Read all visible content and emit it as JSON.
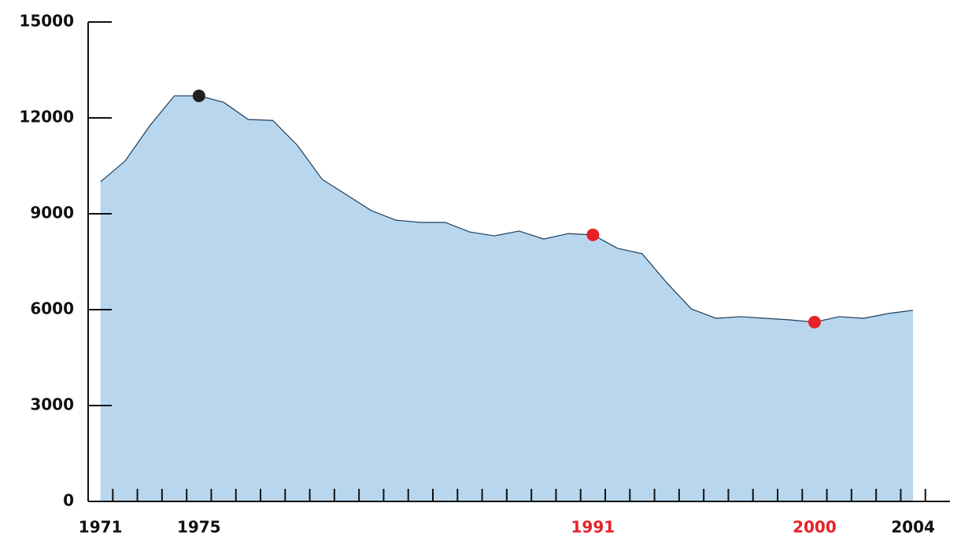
{
  "chart_data": {
    "type": "area",
    "x": [
      1971,
      1972,
      1973,
      1974,
      1975,
      1976,
      1977,
      1978,
      1979,
      1980,
      1981,
      1982,
      1983,
      1984,
      1985,
      1986,
      1987,
      1988,
      1989,
      1990,
      1991,
      1992,
      1993,
      1994,
      1995,
      1996,
      1997,
      1998,
      1999,
      2000,
      2001,
      2002,
      2003,
      2004
    ],
    "values": [
      10000,
      10650,
      11750,
      12690,
      12690,
      12490,
      11950,
      11920,
      11140,
      10080,
      9590,
      9100,
      8800,
      8730,
      8730,
      8430,
      8310,
      8460,
      8210,
      8380,
      8340,
      7920,
      7750,
      6840,
      6020,
      5730,
      5780,
      5730,
      5680,
      5610,
      5780,
      5730,
      5880,
      5980
    ],
    "color": "#b8d7ee",
    "line_color": "#1f3d5a",
    "xlim": [
      1970.5,
      2005.5
    ],
    "ylim": [
      0,
      15000
    ],
    "xticks": [
      1971,
      1975,
      1991,
      2000,
      2004
    ],
    "xtick_colors": [
      "#111111",
      "#111111",
      "#e8202a",
      "#e8202a",
      "#111111"
    ],
    "yticks": [
      0,
      3000,
      6000,
      9000,
      12000,
      15000
    ],
    "highlights": [
      {
        "x": 1975,
        "color": "#231f20"
      },
      {
        "x": 1991,
        "color": "#e8202a"
      },
      {
        "x": 2000,
        "color": "#e8202a"
      }
    ]
  }
}
